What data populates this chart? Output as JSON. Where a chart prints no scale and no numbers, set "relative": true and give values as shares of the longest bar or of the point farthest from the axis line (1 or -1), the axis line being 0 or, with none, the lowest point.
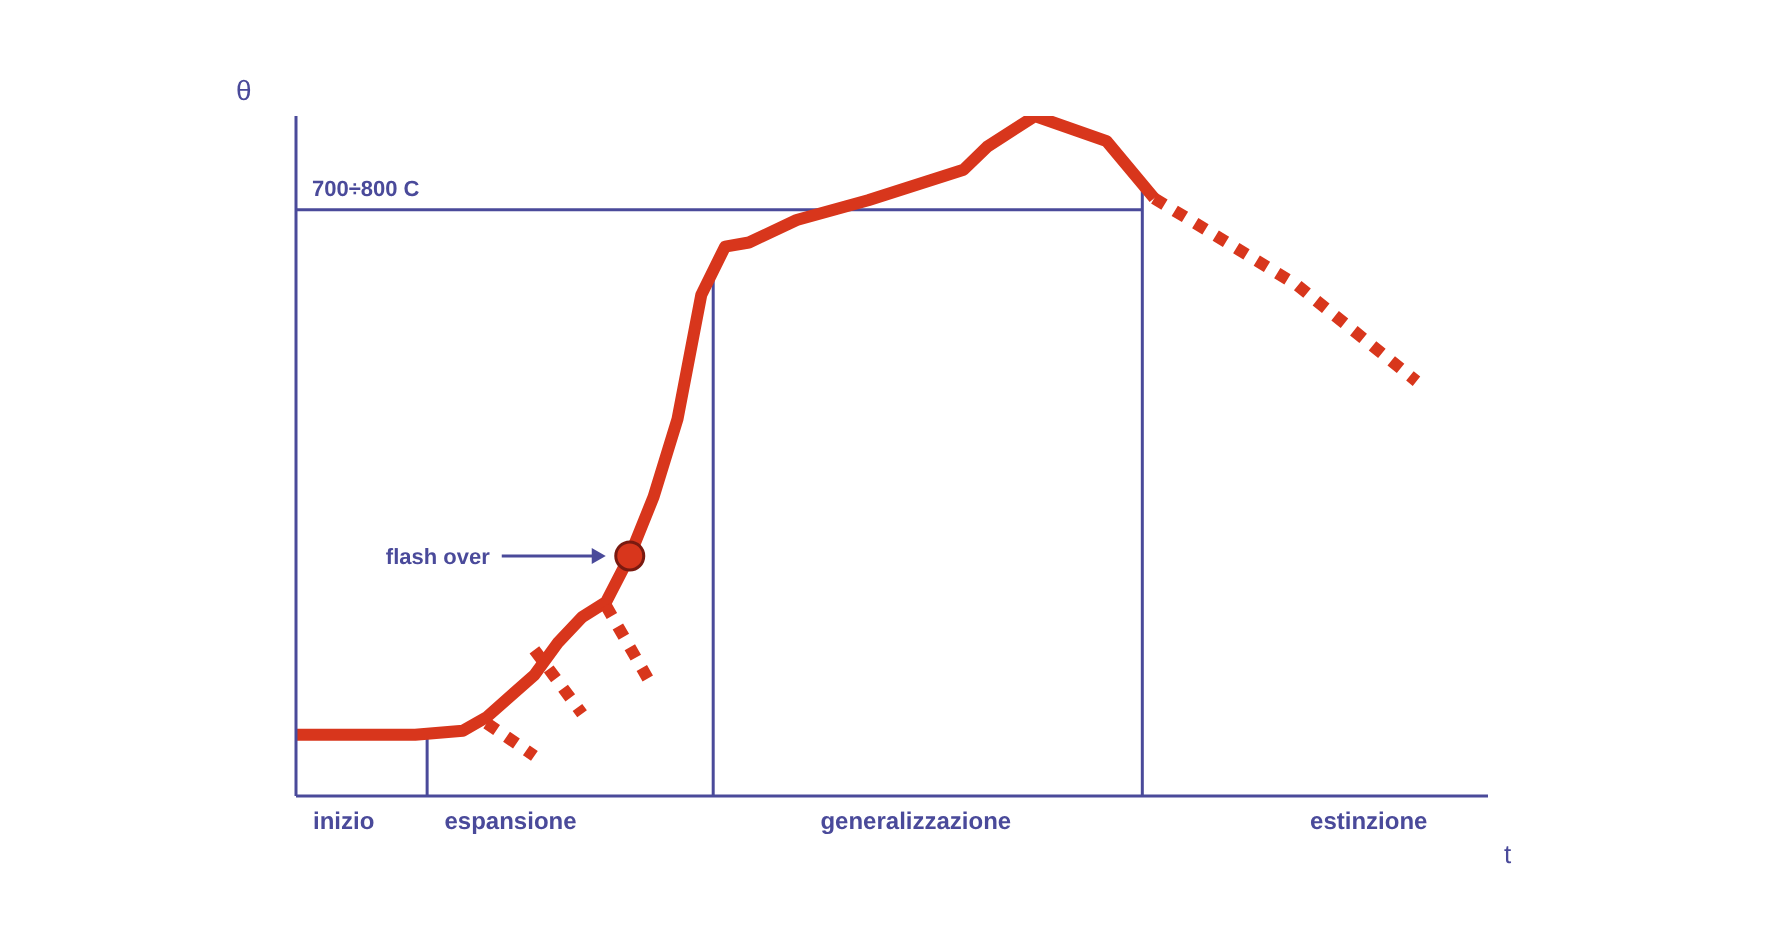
{
  "chart_data": {
    "type": "line",
    "relative": true,
    "xlabel": "t",
    "ylabel": "θ",
    "categories": [
      null,
      null,
      "inizio",
      null,
      null,
      null,
      null,
      null,
      null,
      "espansione",
      null,
      null,
      null,
      null,
      null,
      null,
      null,
      null,
      null,
      null,
      null,
      null,
      null,
      null,
      null,
      null,
      "generalizzazione",
      null,
      null,
      null,
      null,
      null,
      null,
      null,
      null,
      null,
      null,
      null,
      null,
      null,
      null,
      null,
      null,
      null,
      null,
      "estinzione",
      null,
      null,
      null,
      null,
      null
    ],
    "series": [
      {
        "color": "#d8361c",
        "line_style": "solid",
        "values": [
          0.09,
          null,
          null,
          null,
          null,
          0.09,
          null,
          0.096,
          0.116,
          null,
          0.178,
          0.226,
          0.263,
          0.285,
          0.353,
          0.44,
          0.554,
          0.737,
          0.808,
          0.814,
          null,
          0.847,
          null,
          null,
          0.876,
          null,
          null,
          null,
          0.921,
          0.955,
          null,
          1.0,
          null,
          null,
          0.963,
          null,
          0.879,
          null,
          null,
          null,
          null,
          null,
          null,
          null,
          null,
          null,
          null,
          null,
          null,
          null,
          null
        ]
      },
      {
        "type": "line",
        "color": "#d8361c",
        "line_style": "dotted",
        "values": [
          null,
          null,
          null,
          null,
          null,
          null,
          null,
          null,
          null,
          null,
          null,
          null,
          null,
          null,
          null,
          null,
          null,
          null,
          null,
          null,
          null,
          null,
          null,
          null,
          null,
          null,
          null,
          null,
          null,
          null,
          null,
          null,
          null,
          null,
          null,
          null,
          0.879,
          null,
          null,
          null,
          null,
          null,
          0.751,
          null,
          null,
          null,
          null,
          0.61,
          null,
          null,
          null
        ]
      },
      {
        "type": "line",
        "color": "#d8361c",
        "line_style": "dotted",
        "values": [
          null,
          null,
          null,
          null,
          null,
          null,
          null,
          null,
          0.107,
          null,
          0.059,
          null,
          null,
          null,
          null,
          null,
          null,
          null,
          null,
          null,
          null,
          null,
          null,
          null,
          null,
          null,
          null,
          null,
          null,
          null,
          null,
          null,
          null,
          null,
          null,
          null,
          null,
          null,
          null,
          null,
          null,
          null,
          null,
          null,
          null,
          null,
          null,
          null,
          null,
          null,
          null
        ]
      },
      {
        "type": "line",
        "color": "#d8361c",
        "line_style": "dotted",
        "values": [
          null,
          null,
          null,
          null,
          null,
          null,
          null,
          null,
          null,
          null,
          0.215,
          null,
          0.121,
          null,
          null,
          null,
          null,
          null,
          null,
          null,
          null,
          null,
          null,
          null,
          null,
          null,
          null,
          null,
          null,
          null,
          null,
          null,
          null,
          null,
          null,
          null,
          null,
          null,
          null,
          null,
          null,
          null,
          null,
          null,
          null,
          null,
          null,
          null,
          null,
          null,
          null
        ]
      },
      {
        "type": "line",
        "color": "#d8361c",
        "line_style": "dotted",
        "values": [
          null,
          null,
          null,
          null,
          null,
          null,
          null,
          null,
          null,
          null,
          null,
          null,
          null,
          0.28,
          null,
          0.158,
          null,
          null,
          null,
          null,
          null,
          null,
          null,
          null,
          null,
          null,
          null,
          null,
          null,
          null,
          null,
          null,
          null,
          null,
          null,
          null,
          null,
          null,
          null,
          null,
          null,
          null,
          null,
          null,
          null,
          null,
          null,
          null,
          null,
          null,
          null
        ]
      },
      {
        "type": "scatter",
        "color": "#d8361c",
        "marker": "circle",
        "values": [
          null,
          null,
          null,
          null,
          null,
          null,
          null,
          null,
          null,
          null,
          null,
          null,
          null,
          null,
          0.353,
          null,
          null,
          null,
          null,
          null,
          null,
          null,
          null,
          null,
          null,
          null,
          null,
          null,
          null,
          null,
          null,
          null,
          null,
          null,
          null,
          null,
          null,
          null,
          null,
          null,
          null,
          null,
          null,
          null,
          null,
          null,
          null,
          null,
          null,
          null,
          null
        ]
      }
    ],
    "ref_lines": [
      {
        "axis": "y",
        "value": 0.862,
        "label": "700÷800 C",
        "color": "#4a4a9a"
      }
    ],
    "annotations": [
      "flash over"
    ]
  }
}
